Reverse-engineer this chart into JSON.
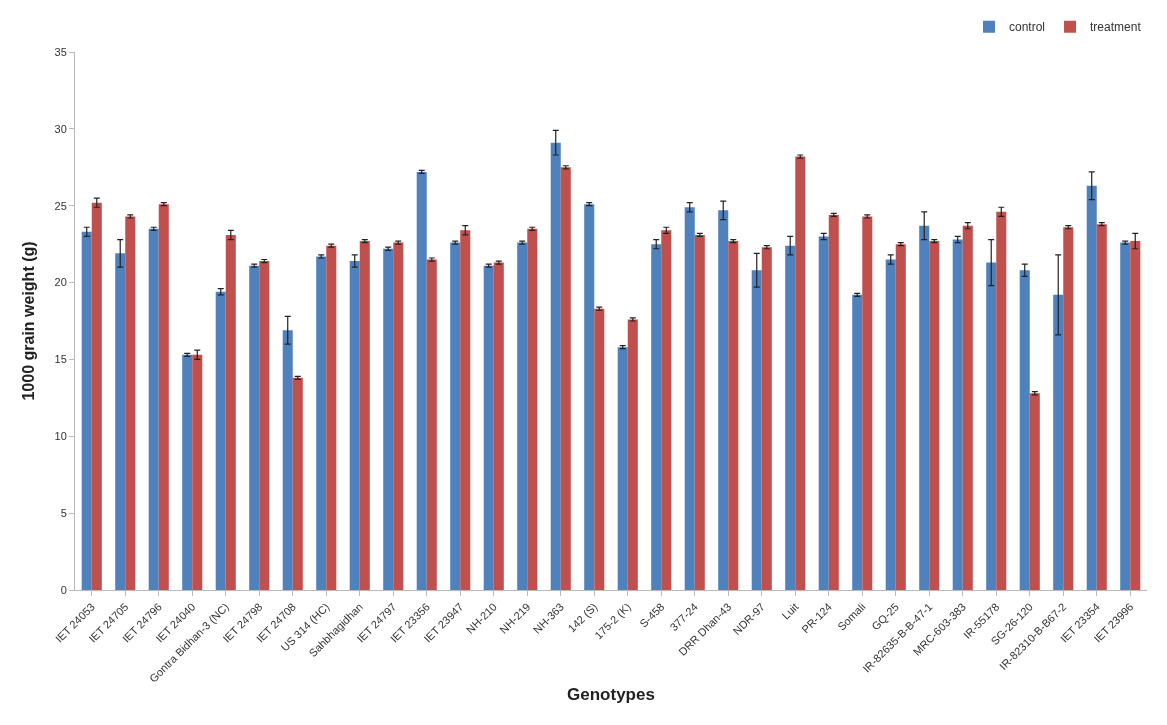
{
  "chart_data": {
    "type": "bar",
    "xlabel": "Genotypes",
    "ylabel": "1000 grain weight (g)",
    "categories": [
      "IET 24053",
      "IET 24705",
      "IET 24796",
      "IET 24040",
      "Gontra Bidhan-3 (NC)",
      "IET 24798",
      "IET 24708",
      "US 314 (HC)",
      "Sahbhagidhan",
      "IET 24797",
      "IET 23356",
      "IET 23947",
      "NH-210",
      "NH-219",
      "NH-363",
      "142 (S)",
      "175-2 (K)",
      "S-458",
      "377-24",
      "DRR Dhan-43",
      "NDR-97",
      "Luit",
      "PR-124",
      "Somali",
      "GQ-25",
      "IR-82635-B-B-47-1",
      "MRC-603-383",
      "IR-55178",
      "SG-26-120",
      "IR-82310-B-B67-2",
      "IET 23354",
      "IET 23996"
    ],
    "series": [
      {
        "name": "control",
        "color": "#4f81bd",
        "values": [
          23.3,
          21.9,
          23.5,
          15.3,
          19.4,
          21.1,
          16.9,
          21.7,
          21.4,
          22.2,
          27.2,
          22.6,
          21.1,
          22.6,
          29.1,
          25.1,
          15.8,
          22.5,
          24.9,
          24.7,
          20.8,
          22.4,
          23.0,
          19.2,
          21.5,
          23.7,
          22.8,
          21.3,
          20.8,
          19.2,
          26.3,
          22.6
        ],
        "errors": [
          0.3,
          0.9,
          0.1,
          0.1,
          0.2,
          0.1,
          0.9,
          0.1,
          0.4,
          0.1,
          0.1,
          0.1,
          0.1,
          0.1,
          0.8,
          0.1,
          0.1,
          0.3,
          0.3,
          0.6,
          1.1,
          0.6,
          0.2,
          0.1,
          0.3,
          0.9,
          0.2,
          1.5,
          0.4,
          2.6,
          0.9,
          0.1
        ]
      },
      {
        "name": "treatment",
        "color": "#c0504d",
        "values": [
          25.2,
          24.3,
          25.1,
          15.3,
          23.1,
          21.4,
          13.8,
          22.4,
          22.7,
          22.6,
          21.5,
          23.4,
          21.3,
          23.5,
          27.5,
          18.3,
          17.6,
          23.4,
          23.1,
          22.7,
          22.3,
          28.2,
          24.4,
          24.3,
          22.5,
          22.7,
          23.7,
          24.6,
          12.8,
          23.6,
          23.8,
          22.7
        ],
        "errors": [
          0.3,
          0.1,
          0.1,
          0.3,
          0.3,
          0.1,
          0.1,
          0.1,
          0.1,
          0.1,
          0.1,
          0.3,
          0.1,
          0.1,
          0.1,
          0.1,
          0.1,
          0.2,
          0.1,
          0.1,
          0.1,
          0.1,
          0.1,
          0.1,
          0.1,
          0.1,
          0.2,
          0.3,
          0.1,
          0.1,
          0.1,
          0.5
        ]
      }
    ],
    "ylim": [
      0,
      35
    ],
    "yticks": [
      0,
      5,
      10,
      15,
      20,
      25,
      30,
      35
    ],
    "grid": false,
    "legend": "top right"
  }
}
